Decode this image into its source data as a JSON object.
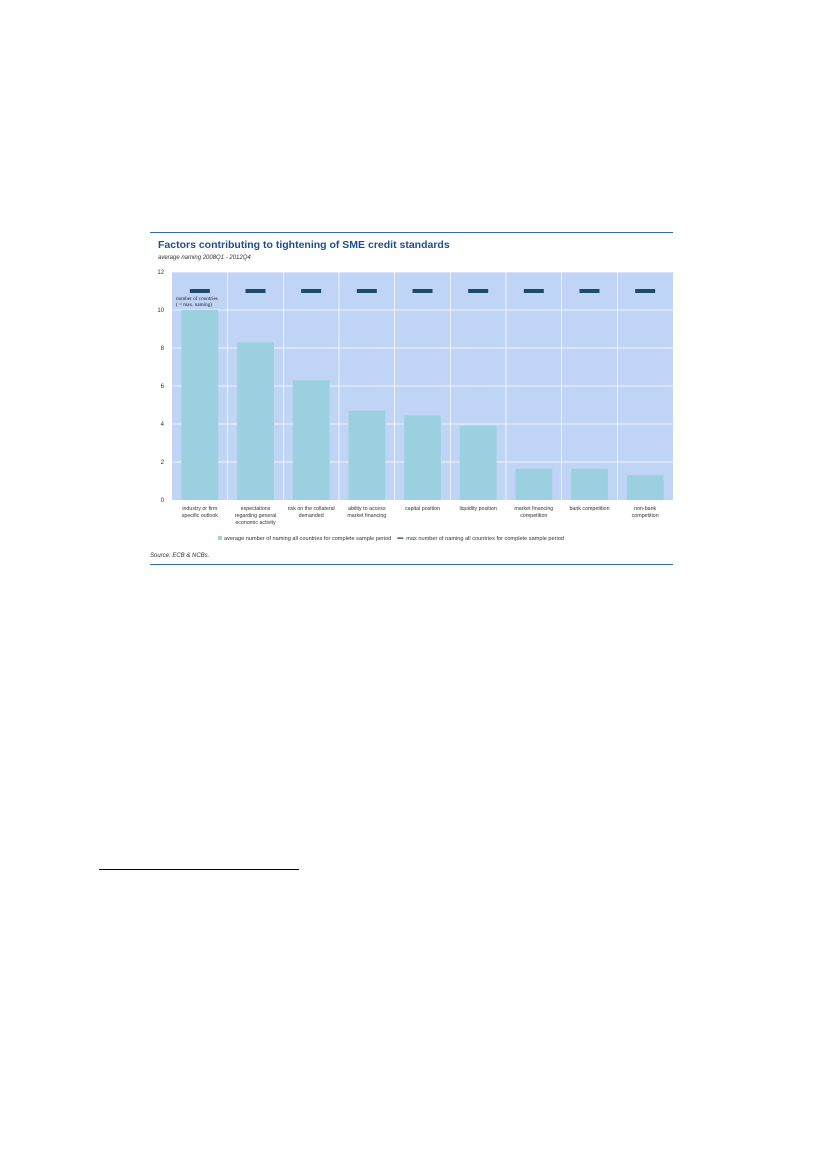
{
  "chart_data": {
    "type": "bar",
    "title": "Factors contributing to tightening of SME credit standards",
    "subtitle": "average naming 2008Q1 - 2012Q4",
    "categories": [
      [
        "industry or firm",
        "specific outlook"
      ],
      [
        "expectations",
        "regarding general",
        "economic activity"
      ],
      [
        "risk on the collateral",
        "demanded"
      ],
      [
        "ability to access",
        "market financing"
      ],
      [
        "capital position"
      ],
      [
        "liquidity position"
      ],
      [
        "market financing",
        "competition"
      ],
      [
        "bank competition"
      ],
      [
        "non-bank",
        "competition"
      ]
    ],
    "series": [
      {
        "name": "average number of naming all countries for complete sample period",
        "kind": "bar",
        "color": "#9ad0e0",
        "values": [
          10.0,
          8.3,
          6.3,
          4.7,
          4.45,
          3.9,
          1.65,
          1.65,
          1.3
        ]
      },
      {
        "name": "max number of naming all countries for complete sample period",
        "kind": "marker",
        "color": "#1b4d6b",
        "values": [
          11,
          11,
          11,
          11,
          11,
          11,
          11,
          11,
          11
        ]
      }
    ],
    "ylim": [
      0,
      12
    ],
    "yticks": [
      0,
      2,
      4,
      6,
      8,
      10,
      12
    ],
    "xlabel": "",
    "ylabel": "",
    "grid": true,
    "plot_background": "#c0d4f6",
    "annotation": [
      "number of countries",
      "( = max. naming)"
    ],
    "legend_position": "bottom",
    "source": "Source: ECB & NCBs."
  }
}
